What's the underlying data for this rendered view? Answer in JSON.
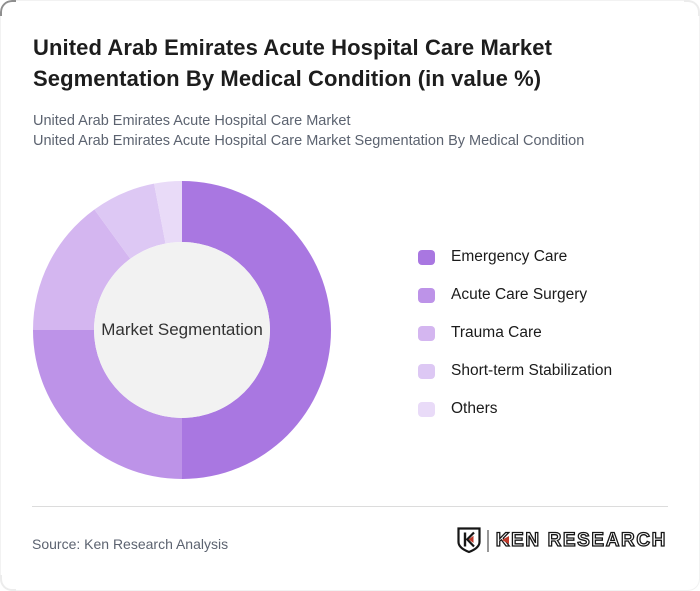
{
  "header": {
    "title_line1": "United Arab Emirates Acute Hospital Care Market",
    "title_line2": "Segmentation By Medical Condition (in value %)",
    "subtitle_line1": "United Arab Emirates Acute Hospital Care Market",
    "subtitle_line2": "United Arab Emirates Acute Hospital Care Market Segmentation By Medical Condition"
  },
  "chart_data": {
    "type": "pie",
    "subtype": "donut",
    "title": "United Arab Emirates Acute Hospital Care Market Segmentation By Medical Condition (in value %)",
    "center_label": "Market Segmentation",
    "center_color": "#f2f2f2",
    "labels": [
      "Emergency Care",
      "Acute Care Surgery",
      "Trauma Care",
      "Short-term Stabilization",
      "Others"
    ],
    "values": [
      50,
      25,
      15,
      7,
      3
    ],
    "colors": [
      "#a977e1",
      "#bd93e8",
      "#d4b6f0",
      "#ddc8f4",
      "#e9dbf8"
    ],
    "start_angle_deg": 0,
    "direction": "clockwise",
    "legend_position": "right",
    "donut_hole_ratio": 0.59
  },
  "footer": {
    "source": "Source: Ken Research Analysis",
    "logo": {
      "badge_letter": "K",
      "brand_k": "K",
      "brand_rest": "EN RESEARCH",
      "accent_color": "#bf3a2b"
    }
  }
}
